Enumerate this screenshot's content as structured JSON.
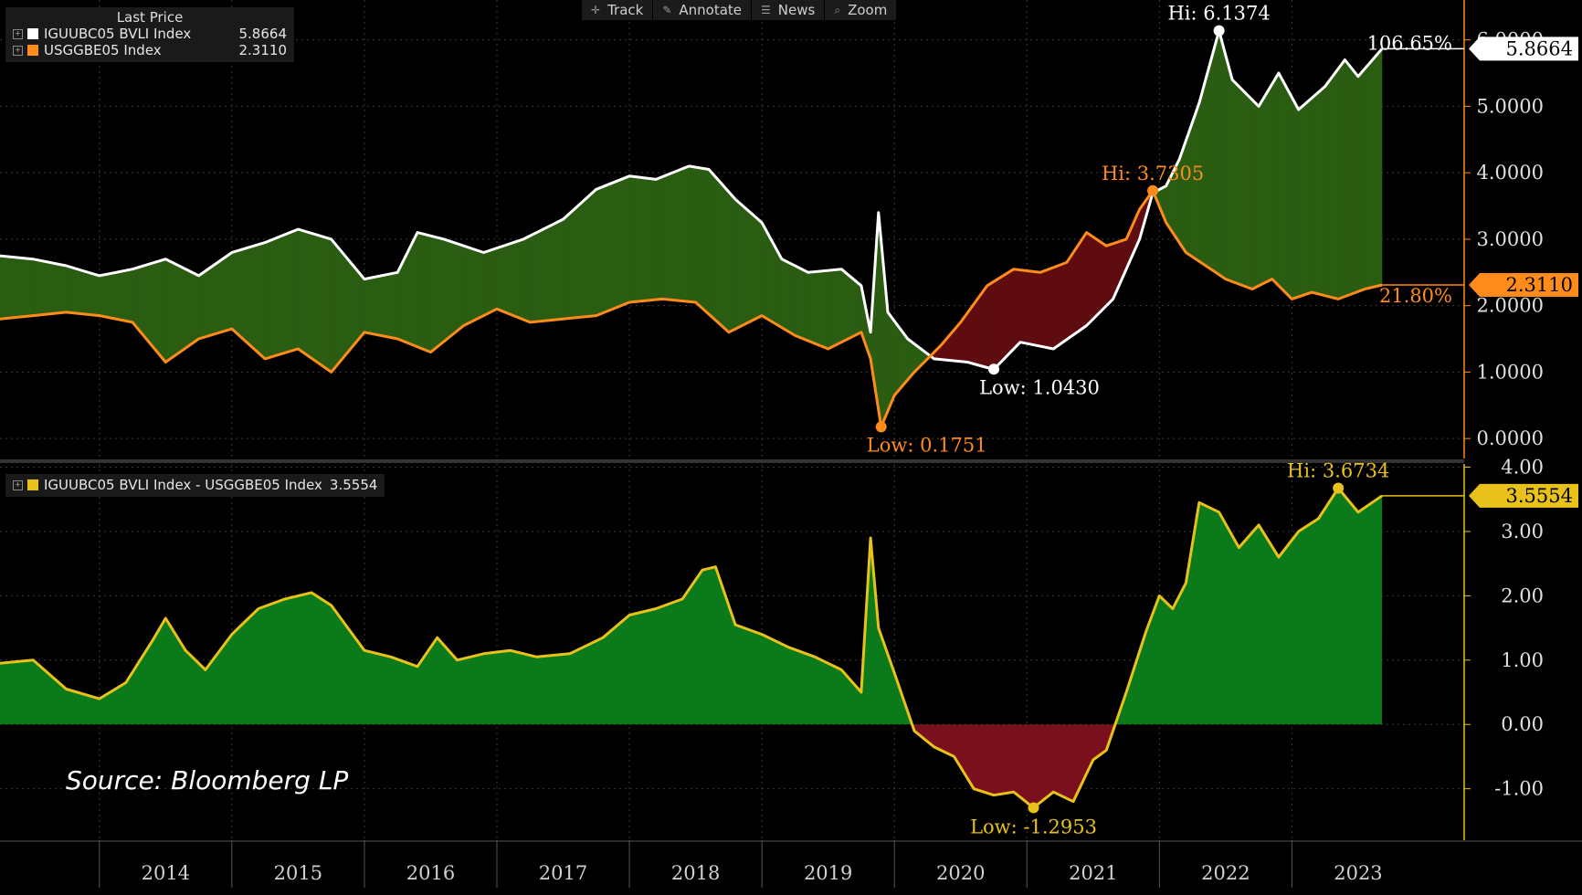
{
  "toolbar": {
    "items": [
      {
        "label": "Track",
        "icon": "crosshair-icon"
      },
      {
        "label": "Annotate",
        "icon": "pencil-icon"
      },
      {
        "label": "News",
        "icon": "news-icon"
      },
      {
        "label": "Zoom",
        "icon": "magnifier-icon"
      }
    ]
  },
  "legend_top": {
    "header": "Last Price",
    "rows": [
      {
        "name": "IGUUBC05 BVLI Index",
        "value": "5.8664",
        "color": "#ffffff"
      },
      {
        "name": "USGGBE05 Index",
        "value": "2.3110",
        "color": "#ff8c1a"
      }
    ]
  },
  "legend_bottom": {
    "rows": [
      {
        "name": "IGUUBC05 BVLI Index - USGGBE05 Index",
        "value": "3.5554",
        "color": "#e8c21a"
      }
    ]
  },
  "source": "Source: Bloomberg LP",
  "chart_data": [
    {
      "type": "line",
      "panel": "top",
      "x_ticks": [
        "2014",
        "2015",
        "2016",
        "2017",
        "2018",
        "2019",
        "2020",
        "2021",
        "2022",
        "2023"
      ],
      "y_ticks": [
        "0.0000",
        "1.0000",
        "2.0000",
        "3.0000",
        "4.0000",
        "5.0000",
        "6.0000"
      ],
      "ylim": [
        -0.3,
        6.6
      ],
      "xlim": [
        2013.25,
        2024.3
      ],
      "grid": true,
      "legend_position": "top-left",
      "series": [
        {
          "name": "IGUUBC05 BVLI Index",
          "color": "#ffffff",
          "last": "5.8664",
          "points": [
            [
              2013.25,
              2.75
            ],
            [
              2013.5,
              2.7
            ],
            [
              2013.75,
              2.6
            ],
            [
              2014.0,
              2.45
            ],
            [
              2014.25,
              2.55
            ],
            [
              2014.5,
              2.7
            ],
            [
              2014.75,
              2.45
            ],
            [
              2015.0,
              2.8
            ],
            [
              2015.25,
              2.95
            ],
            [
              2015.5,
              3.15
            ],
            [
              2015.75,
              3.0
            ],
            [
              2016.0,
              2.4
            ],
            [
              2016.25,
              2.5
            ],
            [
              2016.4,
              3.1
            ],
            [
              2016.6,
              3.0
            ],
            [
              2016.9,
              2.8
            ],
            [
              2017.2,
              3.0
            ],
            [
              2017.5,
              3.3
            ],
            [
              2017.75,
              3.75
            ],
            [
              2018.0,
              3.95
            ],
            [
              2018.2,
              3.9
            ],
            [
              2018.45,
              4.1
            ],
            [
              2018.6,
              4.05
            ],
            [
              2018.8,
              3.6
            ],
            [
              2019.0,
              3.25
            ],
            [
              2019.15,
              2.7
            ],
            [
              2019.35,
              2.5
            ],
            [
              2019.6,
              2.55
            ],
            [
              2019.75,
              2.3
            ],
            [
              2019.82,
              1.6
            ],
            [
              2019.88,
              3.4
            ],
            [
              2019.95,
              1.9
            ],
            [
              2020.1,
              1.5
            ],
            [
              2020.3,
              1.2
            ],
            [
              2020.55,
              1.15
            ],
            [
              2020.75,
              1.04
            ],
            [
              2020.95,
              1.45
            ],
            [
              2021.2,
              1.35
            ],
            [
              2021.45,
              1.7
            ],
            [
              2021.65,
              2.1
            ],
            [
              2021.85,
              3.0
            ],
            [
              2021.95,
              3.7
            ],
            [
              2022.05,
              3.8
            ],
            [
              2022.15,
              4.2
            ],
            [
              2022.3,
              5.05
            ],
            [
              2022.45,
              6.1374
            ],
            [
              2022.55,
              5.4
            ],
            [
              2022.75,
              5.0
            ],
            [
              2022.9,
              5.5
            ],
            [
              2023.05,
              4.95
            ],
            [
              2023.25,
              5.3
            ],
            [
              2023.4,
              5.7
            ],
            [
              2023.5,
              5.45
            ],
            [
              2023.68,
              5.8664
            ]
          ]
        },
        {
          "name": "USGGBE05 Index",
          "color": "#ff8c1a",
          "last": "2.3110",
          "points": [
            [
              2013.25,
              1.8
            ],
            [
              2013.5,
              1.85
            ],
            [
              2013.75,
              1.9
            ],
            [
              2014.0,
              1.85
            ],
            [
              2014.25,
              1.75
            ],
            [
              2014.5,
              1.15
            ],
            [
              2014.75,
              1.5
            ],
            [
              2015.0,
              1.65
            ],
            [
              2015.25,
              1.2
            ],
            [
              2015.5,
              1.35
            ],
            [
              2015.75,
              1.0
            ],
            [
              2016.0,
              1.6
            ],
            [
              2016.25,
              1.5
            ],
            [
              2016.5,
              1.3
            ],
            [
              2016.75,
              1.7
            ],
            [
              2017.0,
              1.95
            ],
            [
              2017.25,
              1.75
            ],
            [
              2017.5,
              1.8
            ],
            [
              2017.75,
              1.85
            ],
            [
              2018.0,
              2.05
            ],
            [
              2018.25,
              2.1
            ],
            [
              2018.5,
              2.05
            ],
            [
              2018.75,
              1.6
            ],
            [
              2019.0,
              1.85
            ],
            [
              2019.25,
              1.55
            ],
            [
              2019.5,
              1.35
            ],
            [
              2019.75,
              1.6
            ],
            [
              2019.82,
              1.2
            ],
            [
              2019.9,
              0.1751
            ],
            [
              2020.0,
              0.65
            ],
            [
              2020.15,
              1.0
            ],
            [
              2020.35,
              1.4
            ],
            [
              2020.5,
              1.75
            ],
            [
              2020.7,
              2.3
            ],
            [
              2020.9,
              2.55
            ],
            [
              2021.1,
              2.5
            ],
            [
              2021.3,
              2.65
            ],
            [
              2021.45,
              3.1
            ],
            [
              2021.6,
              2.9
            ],
            [
              2021.75,
              3.0
            ],
            [
              2021.85,
              3.45
            ],
            [
              2021.95,
              3.7305
            ],
            [
              2022.05,
              3.25
            ],
            [
              2022.2,
              2.8
            ],
            [
              2022.35,
              2.6
            ],
            [
              2022.5,
              2.4
            ],
            [
              2022.7,
              2.25
            ],
            [
              2022.85,
              2.4
            ],
            [
              2023.0,
              2.1
            ],
            [
              2023.15,
              2.2
            ],
            [
              2023.35,
              2.1
            ],
            [
              2023.55,
              2.25
            ],
            [
              2023.68,
              2.311
            ]
          ]
        }
      ],
      "annotations": [
        {
          "text": "Hi: 6.1374",
          "series": 0,
          "x": 2022.45,
          "y": 6.1374,
          "color": "#ffffff"
        },
        {
          "text": "Hi: 3.7305",
          "series": 1,
          "x": 2021.95,
          "y": 3.7305,
          "color": "#ff8c1a"
        },
        {
          "text": "Low: 1.0430",
          "series": 0,
          "x": 2020.75,
          "y": 1.043,
          "color": "#ffffff"
        },
        {
          "text": "Low: 0.1751",
          "series": 1,
          "x": 2019.9,
          "y": 0.1751,
          "color": "#ff8c1a"
        },
        {
          "text": "106.65%",
          "y": 5.95,
          "color": "#ffffff"
        },
        {
          "text": "21.80%",
          "y": 2.15,
          "color": "#ff8c1a"
        }
      ],
      "last_value_tags": [
        {
          "text": "5.8664",
          "y": 5.8664,
          "bg": "#ffffff",
          "fg": "#000000"
        },
        {
          "text": "2.3110",
          "y": 2.311,
          "bg": "#ff8c1a",
          "fg": "#000000"
        }
      ]
    },
    {
      "type": "area",
      "panel": "bottom",
      "y_ticks": [
        "-1.00",
        "0.00",
        "1.00",
        "2.00",
        "3.00",
        "4.00"
      ],
      "ylim": [
        -1.8,
        4.05
      ],
      "xlim": [
        2013.25,
        2024.3
      ],
      "grid": true,
      "legend_position": "top-left",
      "series": [
        {
          "name": "IGUUBC05 BVLI Index - USGGBE05 Index",
          "color": "#e8c21a",
          "positive_fill": "#0b7a1a",
          "negative_fill": "#7a0f1e",
          "last": "3.5554",
          "points": [
            [
              2013.25,
              0.95
            ],
            [
              2013.5,
              1.0
            ],
            [
              2013.75,
              0.55
            ],
            [
              2014.0,
              0.4
            ],
            [
              2014.2,
              0.65
            ],
            [
              2014.4,
              1.3
            ],
            [
              2014.5,
              1.65
            ],
            [
              2014.65,
              1.15
            ],
            [
              2014.8,
              0.85
            ],
            [
              2015.0,
              1.4
            ],
            [
              2015.2,
              1.8
            ],
            [
              2015.4,
              1.95
            ],
            [
              2015.6,
              2.05
            ],
            [
              2015.75,
              1.85
            ],
            [
              2016.0,
              1.15
            ],
            [
              2016.2,
              1.05
            ],
            [
              2016.4,
              0.9
            ],
            [
              2016.55,
              1.35
            ],
            [
              2016.7,
              1.0
            ],
            [
              2016.9,
              1.1
            ],
            [
              2017.1,
              1.15
            ],
            [
              2017.3,
              1.05
            ],
            [
              2017.55,
              1.1
            ],
            [
              2017.8,
              1.35
            ],
            [
              2018.0,
              1.7
            ],
            [
              2018.2,
              1.8
            ],
            [
              2018.4,
              1.95
            ],
            [
              2018.55,
              2.4
            ],
            [
              2018.65,
              2.45
            ],
            [
              2018.8,
              1.55
            ],
            [
              2019.0,
              1.4
            ],
            [
              2019.2,
              1.2
            ],
            [
              2019.4,
              1.05
            ],
            [
              2019.6,
              0.85
            ],
            [
              2019.75,
              0.5
            ],
            [
              2019.82,
              2.9
            ],
            [
              2019.88,
              1.5
            ],
            [
              2020.0,
              0.8
            ],
            [
              2020.15,
              -0.1
            ],
            [
              2020.3,
              -0.35
            ],
            [
              2020.45,
              -0.5
            ],
            [
              2020.6,
              -1.0
            ],
            [
              2020.75,
              -1.1
            ],
            [
              2020.9,
              -1.05
            ],
            [
              2021.05,
              -1.2953
            ],
            [
              2021.2,
              -1.05
            ],
            [
              2021.35,
              -1.2
            ],
            [
              2021.5,
              -0.55
            ],
            [
              2021.6,
              -0.4
            ],
            [
              2021.75,
              0.5
            ],
            [
              2021.9,
              1.45
            ],
            [
              2022.0,
              2.0
            ],
            [
              2022.1,
              1.8
            ],
            [
              2022.2,
              2.2
            ],
            [
              2022.3,
              3.45
            ],
            [
              2022.45,
              3.3
            ],
            [
              2022.6,
              2.75
            ],
            [
              2022.75,
              3.1
            ],
            [
              2022.9,
              2.6
            ],
            [
              2023.05,
              3.0
            ],
            [
              2023.2,
              3.2
            ],
            [
              2023.35,
              3.6734
            ],
            [
              2023.5,
              3.3
            ],
            [
              2023.68,
              3.5554
            ]
          ]
        }
      ],
      "annotations": [
        {
          "text": "Hi: 3.6734",
          "x": 2023.35,
          "y": 3.6734,
          "color": "#e8c21a"
        },
        {
          "text": "Low: -1.2953",
          "x": 2021.05,
          "y": -1.2953,
          "color": "#e8c21a"
        }
      ],
      "last_value_tags": [
        {
          "text": "3.5554",
          "y": 3.5554,
          "bg": "#e8c21a",
          "fg": "#000000"
        }
      ]
    }
  ]
}
